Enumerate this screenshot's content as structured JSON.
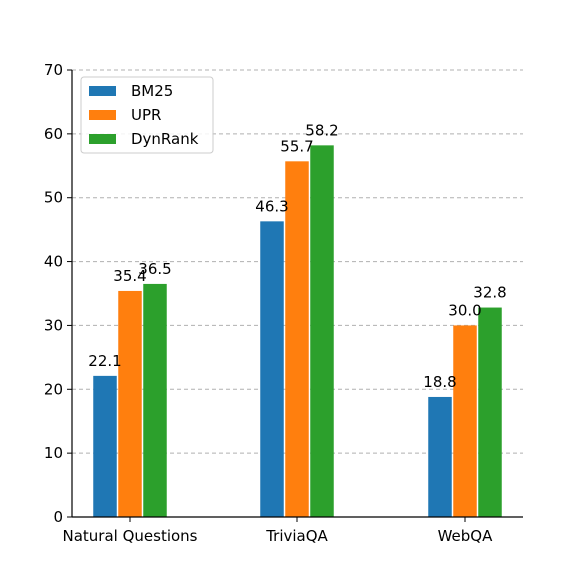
{
  "chart_data": {
    "type": "bar",
    "title": "",
    "xlabel": "",
    "ylabel": "",
    "categories": [
      "Natural Questions",
      "TriviaQA",
      "WebQA"
    ],
    "series": [
      {
        "name": "BM25",
        "values": [
          22.1,
          46.3,
          18.8
        ],
        "color": "#1f77b4",
        "labels": [
          "22.1",
          "46.3",
          "18.8"
        ]
      },
      {
        "name": "UPR",
        "values": [
          35.4,
          55.7,
          30.0
        ],
        "color": "#ff7f0e",
        "labels": [
          "35.4",
          "55.7",
          "30.0"
        ]
      },
      {
        "name": "DynRank",
        "values": [
          36.5,
          58.2,
          32.8
        ],
        "color": "#2ca02c",
        "labels": [
          "36.5",
          "58.2",
          "32.8"
        ]
      }
    ],
    "ylim": [
      0,
      70
    ],
    "yticks": [
      0,
      10,
      20,
      30,
      40,
      50,
      60,
      70
    ],
    "ytick_labels": [
      "0",
      "10",
      "20",
      "30",
      "40",
      "50",
      "60",
      "70"
    ],
    "grid": "horizontal dashed",
    "legend": "top-left"
  }
}
